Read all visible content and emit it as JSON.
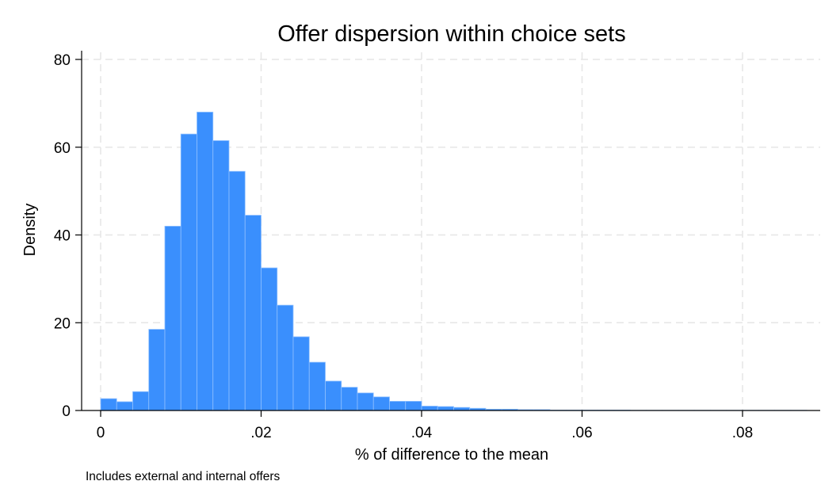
{
  "chart_data": {
    "type": "bar",
    "title": "Offer dispersion within choice sets",
    "xlabel": "% of difference to the mean",
    "ylabel": "Density",
    "note": "Includes external and internal offers",
    "xlim": [
      0,
      0.088
    ],
    "ylim": [
      0,
      80
    ],
    "x_ticks": [
      {
        "value": 0,
        "label": "0"
      },
      {
        "value": 0.02,
        "label": ".02"
      },
      {
        "value": 0.04,
        "label": ".04"
      },
      {
        "value": 0.06,
        "label": ".06"
      },
      {
        "value": 0.08,
        "label": ".08"
      }
    ],
    "y_ticks": [
      {
        "value": 0,
        "label": "0"
      },
      {
        "value": 20,
        "label": "20"
      },
      {
        "value": 40,
        "label": "40"
      },
      {
        "value": 60,
        "label": "60"
      },
      {
        "value": 80,
        "label": "80"
      }
    ],
    "grid": true,
    "bin_start": 0,
    "bin_width": 0.002,
    "values": [
      2.7,
      2.0,
      4.3,
      18.5,
      42.0,
      63.0,
      68.0,
      61.5,
      54.5,
      44.5,
      32.5,
      24.0,
      16.8,
      11.0,
      6.7,
      5.3,
      4.0,
      3.1,
      2.1,
      2.1,
      1.0,
      0.9,
      0.7,
      0.5,
      0.3,
      0.3,
      0.2,
      0.2,
      0.1,
      0.1,
      0.1,
      0.1,
      0.1,
      0.05,
      0.05,
      0.05,
      0.05,
      0.05,
      0.05,
      0.05,
      0.05,
      0.05,
      0.05,
      0.05
    ],
    "bar_color": "#3a8ffd",
    "bar_edge_color": "#8fc0ff"
  }
}
